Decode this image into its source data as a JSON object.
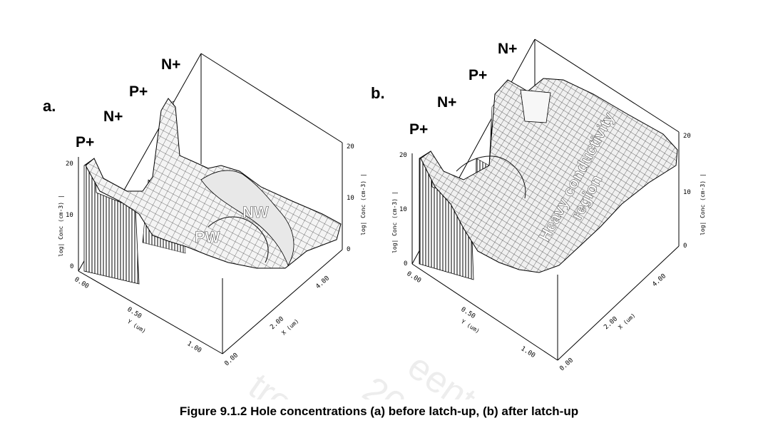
{
  "watermark": [
    "tron",
    "20",
    "eent"
  ],
  "panels": [
    {
      "letter": "a.",
      "regions": [
        "P+",
        "N+",
        "P+",
        "N+"
      ],
      "surface_labels": [
        "PW",
        "NW"
      ],
      "z_ticks_left": [
        "20",
        "10",
        "0"
      ],
      "z_ticks_right": [
        "20",
        "10",
        "0"
      ],
      "y_ticks": [
        "0.00",
        "0.50",
        "1.00"
      ],
      "x_ticks": [
        "0.00",
        "2.00",
        "4.00"
      ],
      "zlabel": "log| Conc (cm-3) |",
      "ylabel": "Y (um)",
      "xlabel": "X (um)"
    },
    {
      "letter": "b.",
      "regions": [
        "P+",
        "N+",
        "P+",
        "N+"
      ],
      "surface_labels": [
        "Heavy conductivity",
        "region"
      ],
      "z_ticks_left": [
        "20",
        "10",
        "0"
      ],
      "z_ticks_right": [
        "20",
        "10",
        "0"
      ],
      "y_ticks": [
        "0.00",
        "0.50",
        "1.00"
      ],
      "x_ticks": [
        "0.00",
        "2.00",
        "4.00"
      ],
      "zlabel": "log| Conc (cm-3) |",
      "ylabel": "Y (um)",
      "xlabel": "X (um)"
    }
  ],
  "caption": "Figure 9.1.2 Hole concentrations (a) before latch-up, (b) after latch-up"
}
